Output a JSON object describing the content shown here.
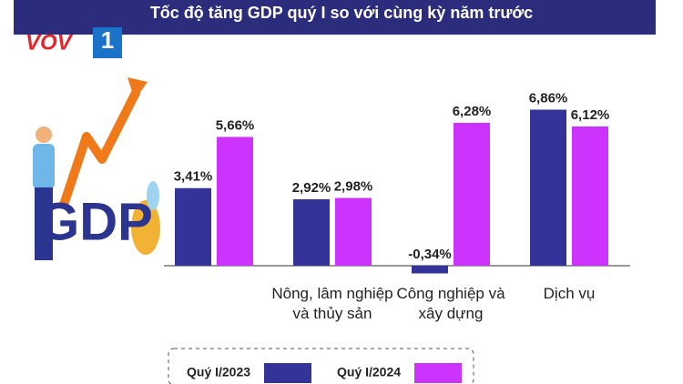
{
  "logo": {
    "brand": "VOV",
    "channel": "1"
  },
  "illustration_text": "GDP",
  "chart_data": {
    "type": "bar",
    "title": "Tốc độ tăng GDP quý I so với cùng kỳ năm trước",
    "categories": [
      null,
      "Nông, lâm nghiệp và thủy sản",
      "Công nghiệp và xây dựng",
      "Dịch vụ"
    ],
    "series": [
      {
        "name": "Quý I/2023",
        "color": "#333399",
        "values": [
          3.41,
          2.92,
          -0.34,
          6.86
        ],
        "value_labels": [
          "3,41%",
          "2,92%",
          "-0,34%",
          "6,86%"
        ]
      },
      {
        "name": "Quý I/2024",
        "color": "#cc33ff",
        "values": [
          5.66,
          2.98,
          6.28,
          6.12
        ],
        "value_labels": [
          "5,66%",
          "2,98%",
          "6,28%",
          "6,12%"
        ]
      }
    ],
    "ylim": [
      -0.5,
      7.5
    ],
    "legend": "bottom"
  }
}
